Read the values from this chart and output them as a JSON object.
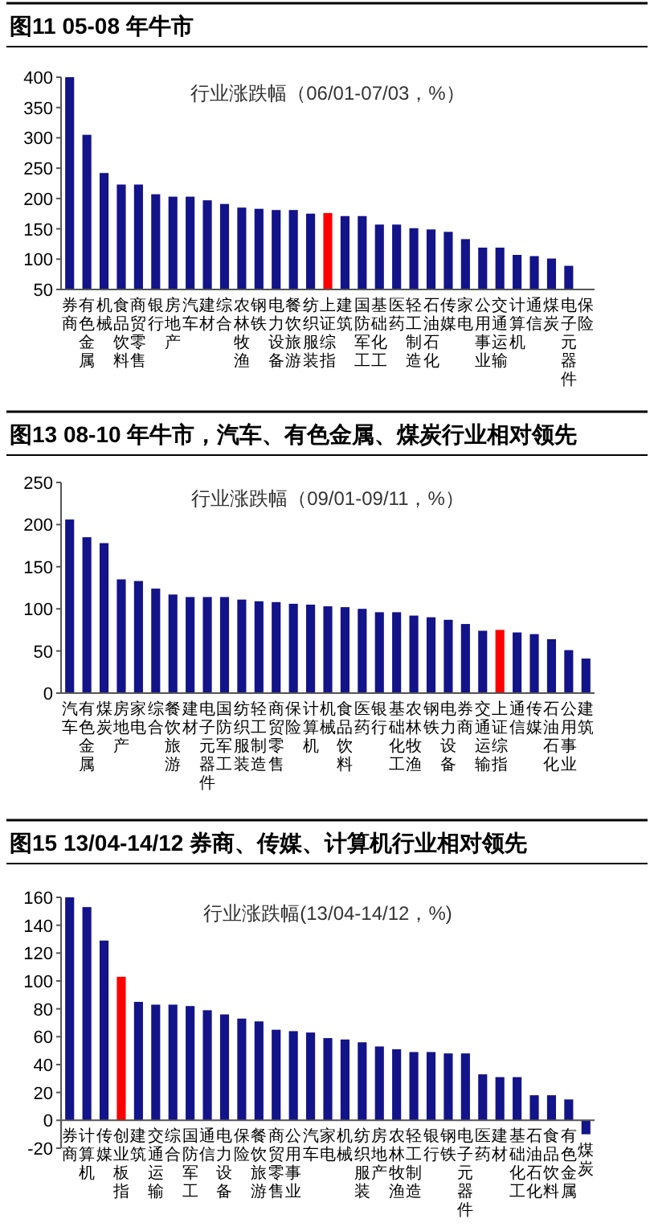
{
  "chart_data": [
    {
      "type": "bar",
      "title": "图11 05-08 年牛市",
      "subtitle": "行业涨跌幅（06/01-07/03，%）",
      "categories": [
        "券商",
        "有色金属",
        "机械",
        "食品饮料",
        "商贸零售",
        "银行",
        "房地产",
        "汽车",
        "建材",
        "综合",
        "农林牧渔",
        "钢铁",
        "电力设备",
        "餐饮旅游",
        "纺织服装",
        "上证综指",
        "建筑",
        "国防军工",
        "基础化工",
        "医药",
        "轻工制造",
        "石油石化",
        "传媒",
        "家电",
        "公用事业",
        "交通运输",
        "计算机",
        "通信",
        "煤炭",
        "电子元器件",
        "保险"
      ],
      "values": [
        400,
        305,
        242,
        223,
        223,
        207,
        203,
        203,
        197,
        191,
        185,
        183,
        181,
        181,
        175,
        176,
        171,
        171,
        157,
        157,
        151,
        149,
        145,
        133,
        119,
        119,
        107,
        105,
        101,
        89,
        51
      ],
      "colors": [
        "#13138a",
        "#13138a",
        "#13138a",
        "#13138a",
        "#13138a",
        "#13138a",
        "#13138a",
        "#13138a",
        "#13138a",
        "#13138a",
        "#13138a",
        "#13138a",
        "#13138a",
        "#13138a",
        "#13138a",
        "#ff0000",
        "#13138a",
        "#13138a",
        "#13138a",
        "#13138a",
        "#13138a",
        "#13138a",
        "#13138a",
        "#13138a",
        "#13138a",
        "#13138a",
        "#13138a",
        "#13138a",
        "#13138a",
        "#13138a",
        "#13138a"
      ],
      "ylim": [
        50,
        400
      ],
      "yticks": [
        50,
        100,
        150,
        200,
        250,
        300,
        350,
        400
      ]
    },
    {
      "type": "bar",
      "title": "图13 08-10 年牛市，汽车、有色金属、煤炭行业相对领先",
      "subtitle": "行业涨跌幅（09/01-09/11，%）",
      "categories": [
        "汽车",
        "有色金属",
        "煤炭",
        "房地产",
        "家电",
        "综合",
        "餐饮旅游",
        "建材",
        "电子元器件",
        "国防军工",
        "纺织服装",
        "轻工制造",
        "商贸零售",
        "保险",
        "计算机",
        "机械",
        "食品饮料",
        "医药",
        "银行",
        "基础化工",
        "农林牧渔",
        "钢铁",
        "电力设备",
        "券商",
        "交通运输",
        "上证综指",
        "通信",
        "传媒",
        "石油石化",
        "公用事业",
        "建筑"
      ],
      "values": [
        206,
        185,
        178,
        135,
        133,
        124,
        117,
        114,
        114,
        114,
        111,
        109,
        108,
        106,
        105,
        103,
        102,
        100,
        96,
        96,
        92,
        90,
        87,
        82,
        74,
        75,
        72,
        70,
        64,
        51,
        41
      ],
      "colors": [
        "#13138a",
        "#13138a",
        "#13138a",
        "#13138a",
        "#13138a",
        "#13138a",
        "#13138a",
        "#13138a",
        "#13138a",
        "#13138a",
        "#13138a",
        "#13138a",
        "#13138a",
        "#13138a",
        "#13138a",
        "#13138a",
        "#13138a",
        "#13138a",
        "#13138a",
        "#13138a",
        "#13138a",
        "#13138a",
        "#13138a",
        "#13138a",
        "#13138a",
        "#ff0000",
        "#13138a",
        "#13138a",
        "#13138a",
        "#13138a",
        "#13138a"
      ],
      "ylim": [
        0,
        250
      ],
      "yticks": [
        0,
        50,
        100,
        150,
        200,
        250
      ]
    },
    {
      "type": "bar",
      "title": "图15 13/04-14/12 券商、传媒、计算机行业相对领先",
      "subtitle": "行业涨跌幅(13/04-14/12，%)",
      "categories": [
        "券商",
        "计算机",
        "传媒",
        "创业板指",
        "建筑",
        "交通运输",
        "综合",
        "国防军工",
        "通信",
        "电力设备",
        "保险",
        "餐饮旅游",
        "商贸零售",
        "公用事业",
        "汽车",
        "家电",
        "机械",
        "纺织服装",
        "房地产",
        "农林牧渔",
        "轻工制造",
        "银行",
        "钢铁",
        "电子元器件",
        "医药",
        "建材",
        "基础化工",
        "石油石化",
        "食品饮料",
        "有色金属",
        "煤炭"
      ],
      "values": [
        160,
        153,
        129,
        103,
        85,
        83,
        83,
        82,
        79,
        76,
        73,
        71,
        65,
        64,
        63,
        59,
        58,
        56,
        53,
        51,
        49,
        49,
        48,
        48,
        33,
        31,
        31,
        18,
        18,
        15,
        -10
      ],
      "colors": [
        "#13138a",
        "#13138a",
        "#13138a",
        "#ff0000",
        "#13138a",
        "#13138a",
        "#13138a",
        "#13138a",
        "#13138a",
        "#13138a",
        "#13138a",
        "#13138a",
        "#13138a",
        "#13138a",
        "#13138a",
        "#13138a",
        "#13138a",
        "#13138a",
        "#13138a",
        "#13138a",
        "#13138a",
        "#13138a",
        "#13138a",
        "#13138a",
        "#13138a",
        "#13138a",
        "#13138a",
        "#13138a",
        "#13138a",
        "#13138a",
        "#13138a"
      ],
      "ylim": [
        -20,
        160
      ],
      "yticks": [
        -20,
        0,
        20,
        40,
        60,
        80,
        100,
        120,
        140,
        160
      ]
    }
  ]
}
